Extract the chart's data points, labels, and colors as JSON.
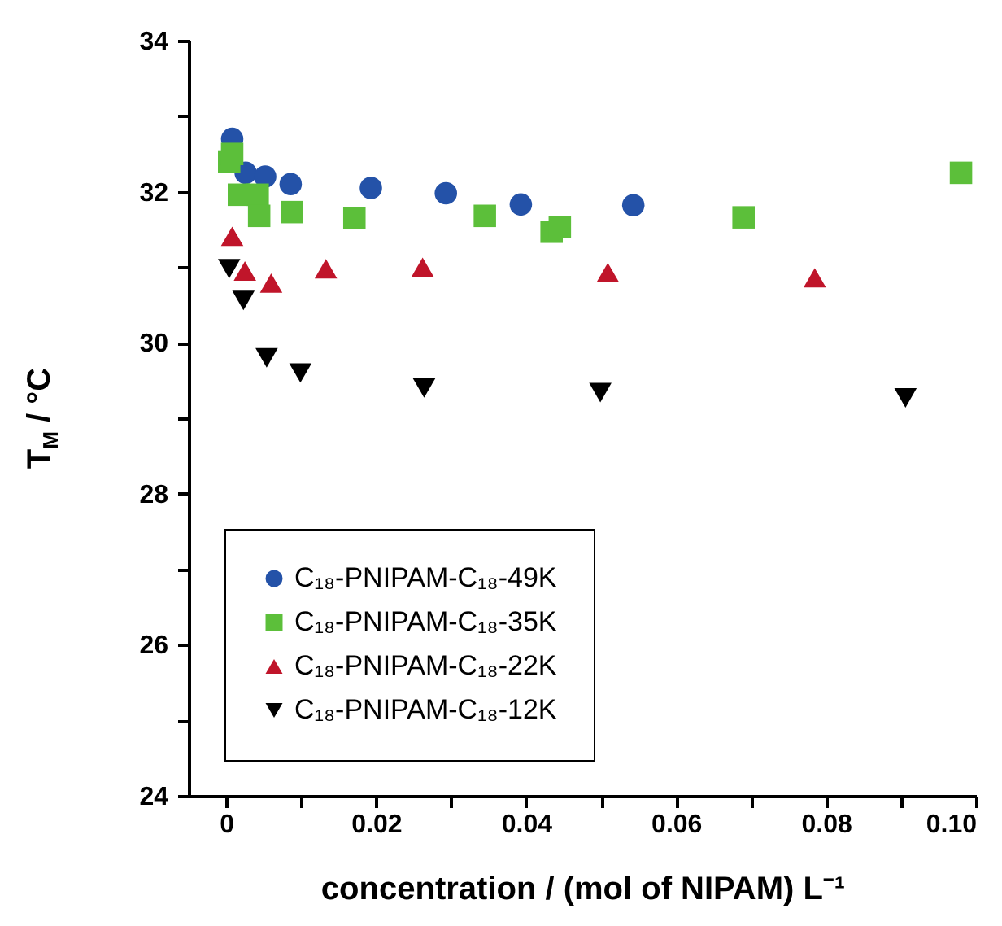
{
  "chart_data": {
    "type": "scatter",
    "xlabel": "concentration / (mol of NIPAM) L⁻¹",
    "ylabel": "T$_{M}$ / °C",
    "xlim": [
      -0.005,
      0.1
    ],
    "xticks": [
      0,
      {
        "value": 0.01,
        "label": null
      },
      0.02,
      {
        "value": 0.03,
        "label": null
      },
      0.04,
      {
        "value": 0.05,
        "label": null
      },
      0.06,
      {
        "value": 0.07,
        "label": null
      },
      0.08,
      {
        "value": 0.09,
        "label": null
      },
      {
        "value": 0.1,
        "label": "0.10"
      }
    ],
    "ylim": [
      24,
      34
    ],
    "yticks": [
      24,
      {
        "value": 25,
        "label": null
      },
      26,
      {
        "value": 27,
        "label": null
      },
      28,
      {
        "value": 29,
        "label": null
      },
      30,
      {
        "value": 31,
        "label": null
      },
      32,
      {
        "value": 33,
        "label": null
      },
      34
    ],
    "grid": false,
    "legend": "bottom left",
    "series": [
      {
        "name": "C₁₈-PNIPAM-C₁₈-49K",
        "color": "#2452a8",
        "marker": "circle",
        "x": [
          0.0008,
          0.0026,
          0.0052,
          0.0086,
          0.0193,
          0.0293,
          0.0393,
          0.0543
        ],
        "values": [
          32.7,
          32.25,
          32.2,
          32.1,
          32.05,
          31.98,
          31.83,
          31.82
        ]
      },
      {
        "name": "C₁₈-PNIPAM-C₁₈-35K",
        "color": "#5cbf3a",
        "marker": "square",
        "x": [
          0.0004,
          0.0008,
          0.0017,
          0.0042,
          0.0044,
          0.0088,
          0.0171,
          0.0345,
          0.0434,
          0.0445,
          0.069,
          0.098
        ],
        "values": [
          32.4,
          32.5,
          31.96,
          31.96,
          31.68,
          31.73,
          31.65,
          31.68,
          31.47,
          31.53,
          31.66,
          32.25
        ]
      },
      {
        "name": "C₁₈-PNIPAM-C₁₈-22K",
        "color": "#c0152a",
        "marker": "triangle",
        "x": [
          0.0008,
          0.0025,
          0.006,
          0.0133,
          0.0262,
          0.0509,
          0.0785
        ],
        "values": [
          31.41,
          30.95,
          30.79,
          30.98,
          31.0,
          30.93,
          30.86
        ]
      },
      {
        "name": "C₁₈-PNIPAM-C₁₈-12K",
        "color": "#000000",
        "marker": "triangle-down",
        "x": [
          0.0004,
          0.0023,
          0.0054,
          0.0099,
          0.0264,
          0.0499,
          0.0906
        ],
        "values": [
          30.98,
          30.56,
          29.8,
          29.6,
          29.4,
          29.34,
          29.27
        ]
      }
    ]
  }
}
